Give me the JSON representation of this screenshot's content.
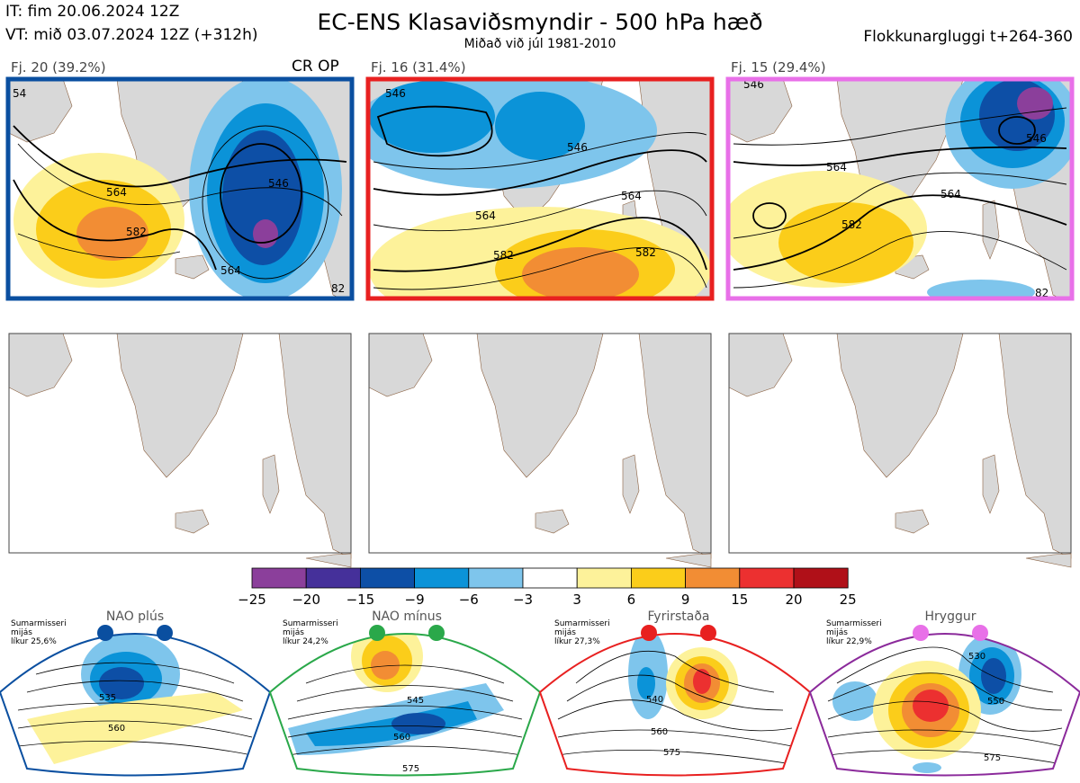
{
  "header": {
    "it": "IT: fim 20.06.2024 12Z",
    "vt": "VT: mið 03.07.2024 12Z  (+312h)",
    "title": "EC-ENS Klasaviðsmyndir - 500 hPa hæð",
    "subtitle": "Miðað við júl 1981-2010",
    "window": "Flokkunargluggi t+264-360"
  },
  "op_label": "CR OP",
  "clusters": [
    {
      "label": "Fj. 20 (39.2%)",
      "frame_color": "#0a4fa0",
      "contours": [
        "564",
        "582",
        "546",
        "564",
        "54",
        "82"
      ]
    },
    {
      "label": "Fj. 16 (31.4%)",
      "frame_color": "#e82020",
      "contours": [
        "546",
        "546",
        "564",
        "564",
        "582",
        "582"
      ]
    },
    {
      "label": "Fj. 15 (29.4%)",
      "frame_color": "#e870e8",
      "contours": [
        "546",
        "546",
        "564",
        "564",
        "582",
        "82"
      ]
    }
  ],
  "colorbar": {
    "ticks": [
      "−25",
      "−20",
      "−15",
      "−9",
      "−6",
      "−3",
      "3",
      "6",
      "9",
      "15",
      "20",
      "25"
    ],
    "colors": [
      "#8b3f9b",
      "#45309a",
      "#0d4fa6",
      "#0b93d8",
      "#7ec5ec",
      "#ffffff",
      "#fdf29a",
      "#fbcd1a",
      "#f28d34",
      "#ec3030",
      "#b01018"
    ]
  },
  "regimes": [
    {
      "name": "NAO plús",
      "season": "Sumarmisseri",
      "avg": "mijás",
      "prob": "líkur 25,6%",
      "frame_color": "#0a4fa0",
      "dot_color": "#0a4fa0",
      "contours": [
        "535",
        "560"
      ]
    },
    {
      "name": "NAO mínus",
      "season": "Sumarmisseri",
      "avg": "mijás",
      "prob": "líkur 24,2%",
      "frame_color": "#2aa84a",
      "dot_color": "#2aa84a",
      "contours": [
        "545",
        "560",
        "575"
      ]
    },
    {
      "name": "Fyrirstaða",
      "season": "Sumarmisseri",
      "avg": "mijás",
      "prob": "líkur 27,3%",
      "frame_color": "#e82020",
      "dot_color": "#e82020",
      "contours": [
        "540",
        "560",
        "575"
      ]
    },
    {
      "name": "Hryggur",
      "season": "Sumarmisseri",
      "avg": "mijás",
      "prob": "líkur 22,9%",
      "frame_color": "#8b2a9b",
      "dot_color": "#e870e8",
      "contours": [
        "530",
        "550",
        "575"
      ]
    }
  ]
}
